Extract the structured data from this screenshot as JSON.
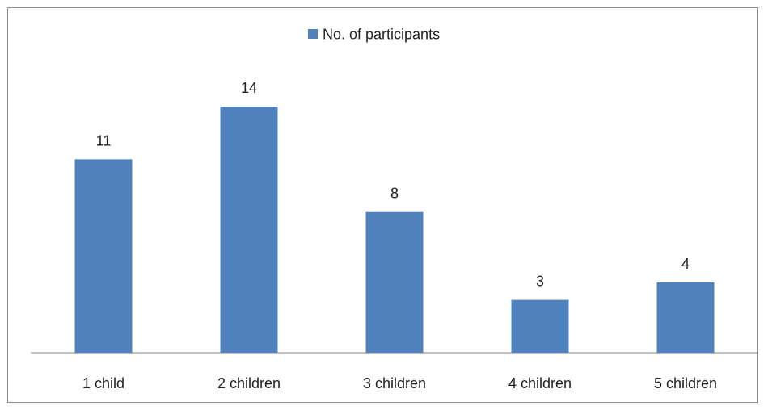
{
  "chart_data": {
    "type": "bar",
    "categories": [
      "1 child",
      "2 children",
      "3 children",
      "4 children",
      "5 children"
    ],
    "series": [
      {
        "name": "No. of participants",
        "values": [
          11,
          14,
          8,
          3,
          4
        ],
        "color": "#4f81bd"
      }
    ],
    "ylim": [
      0,
      14
    ],
    "grid": false,
    "legend_position": "top-center",
    "data_labels": true
  }
}
